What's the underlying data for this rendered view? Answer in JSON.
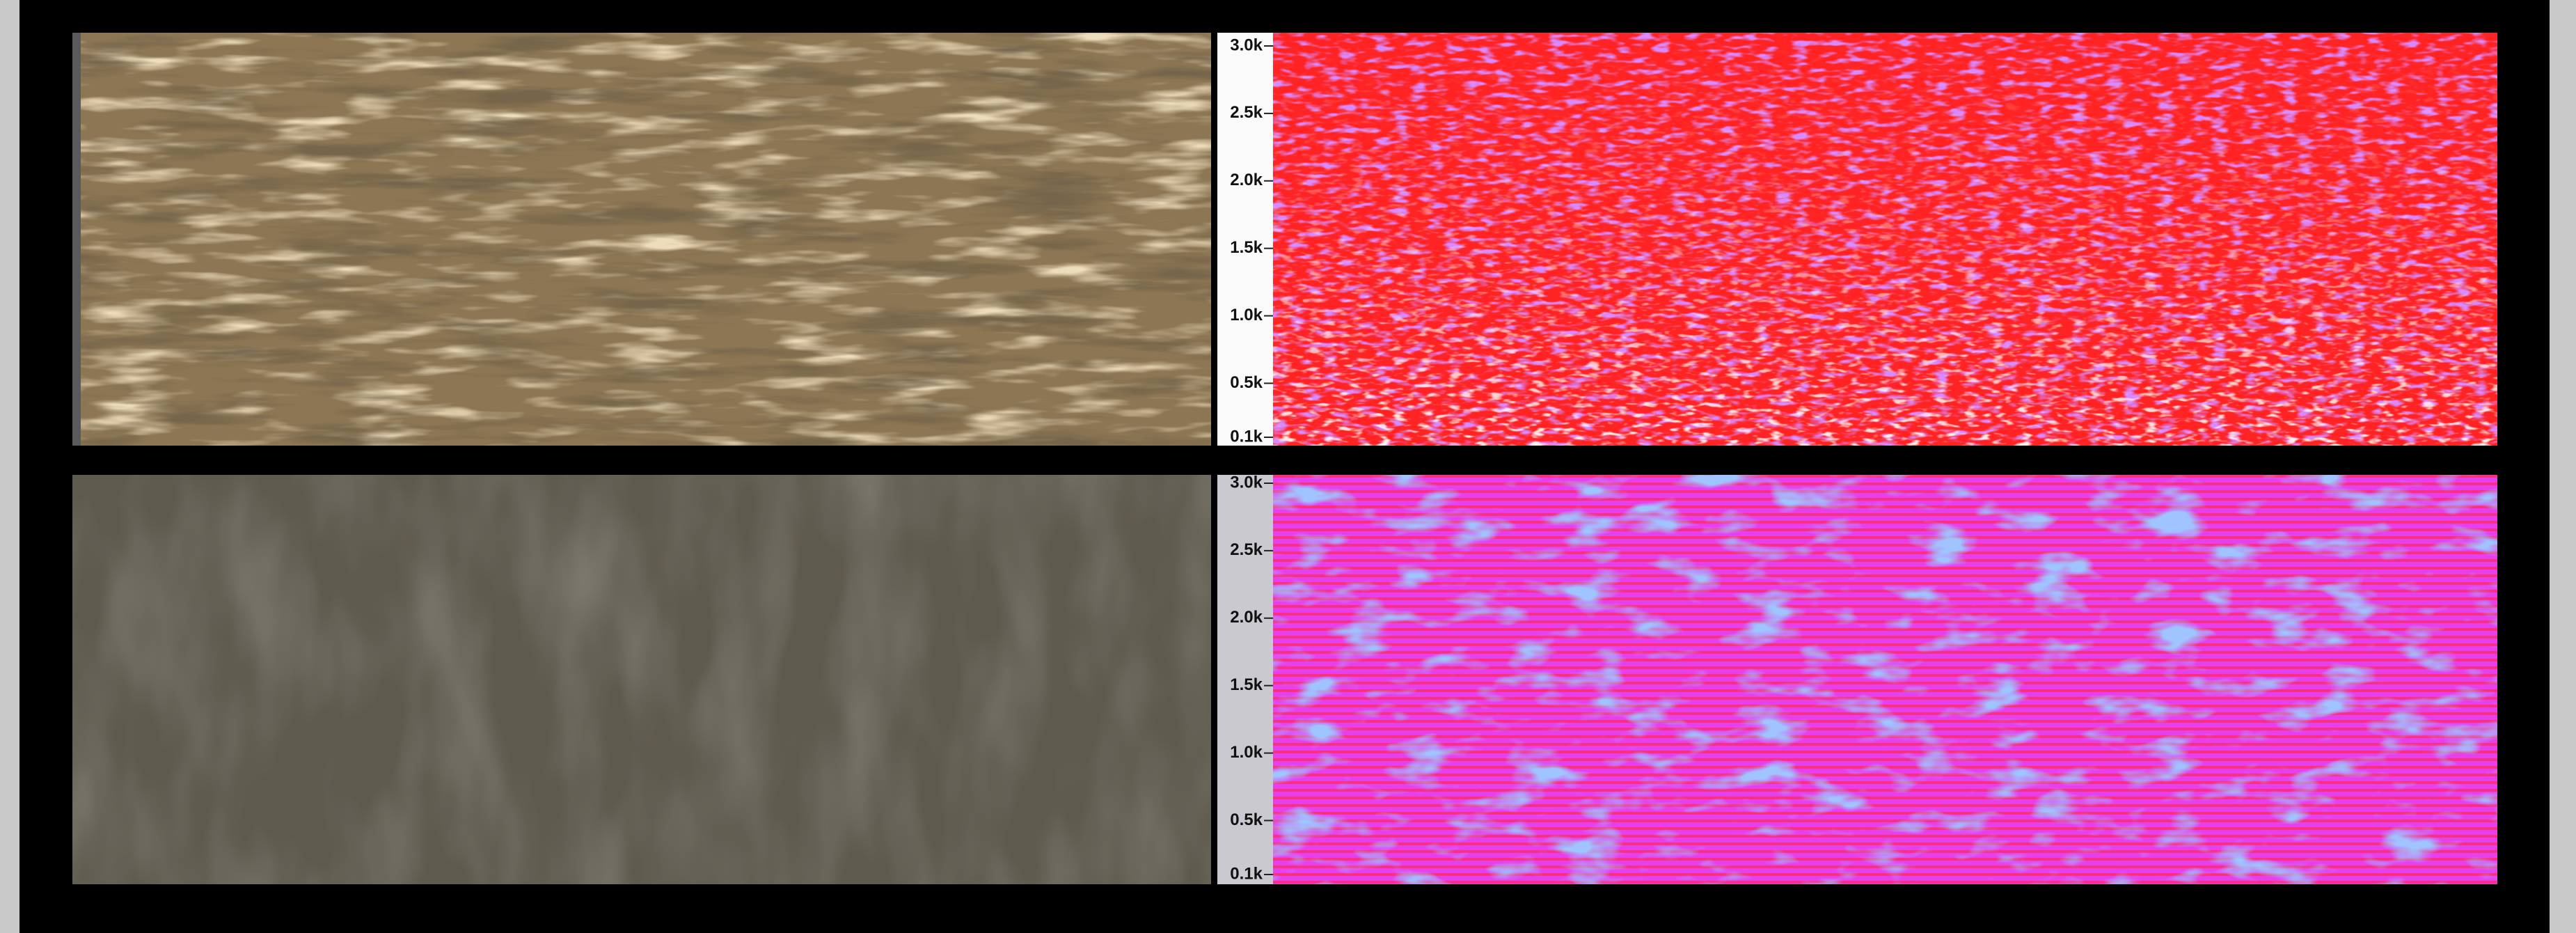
{
  "panels": [
    {
      "ticks": [
        {
          "value": 3000,
          "label": "3.0k"
        },
        {
          "value": 2500,
          "label": "2.5k"
        },
        {
          "value": 2000,
          "label": "2.0k"
        },
        {
          "value": 1500,
          "label": "1.5k"
        },
        {
          "value": 1000,
          "label": "1.0k"
        },
        {
          "value": 500,
          "label": "0.5k"
        },
        {
          "value": 100,
          "label": "0.1k"
        }
      ]
    },
    {
      "ticks": [
        {
          "value": 3000,
          "label": "3.0k"
        },
        {
          "value": 2500,
          "label": "2.5k"
        },
        {
          "value": 2000,
          "label": "2.0k"
        },
        {
          "value": 1500,
          "label": "1.5k"
        },
        {
          "value": 1000,
          "label": "1.0k"
        },
        {
          "value": 500,
          "label": "0.5k"
        },
        {
          "value": 100,
          "label": "0.1k"
        }
      ]
    }
  ]
}
